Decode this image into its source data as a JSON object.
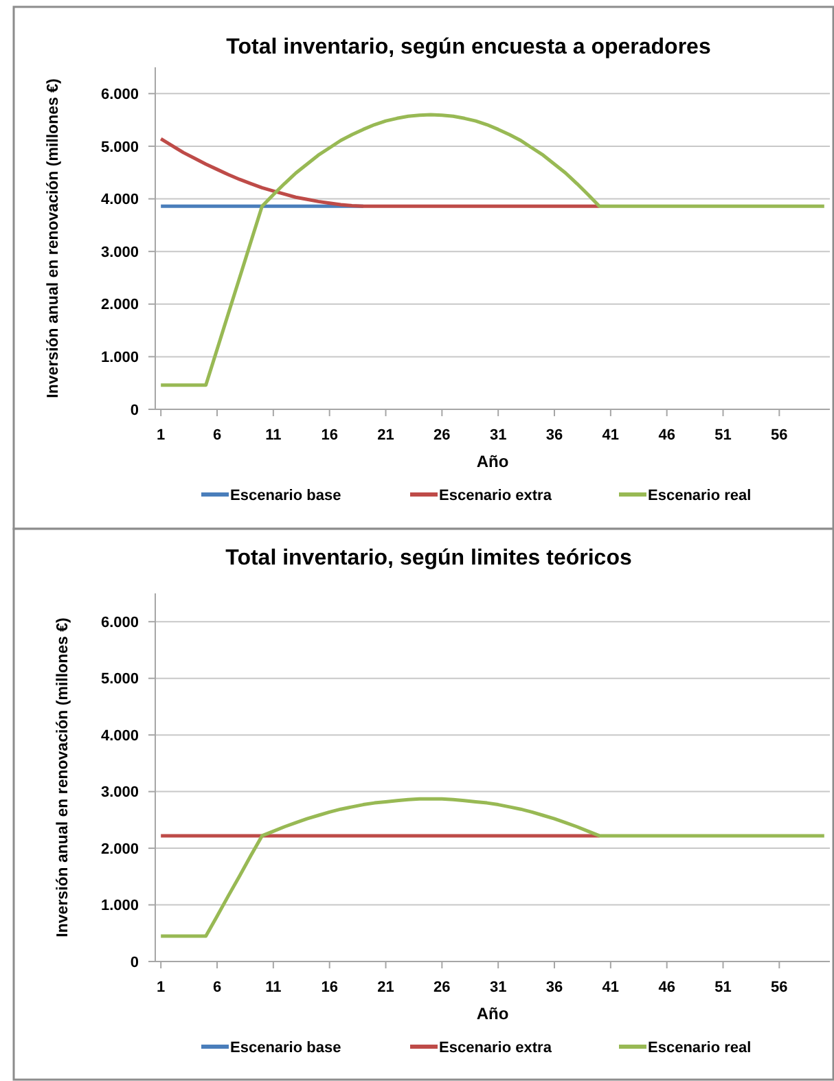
{
  "chart_data": [
    {
      "type": "line",
      "title": "Total inventario, según encuesta a operadores",
      "xlabel": "Año",
      "ylabel": "Inversión anual en renovación (millones €)",
      "x": [
        1,
        2,
        3,
        4,
        5,
        6,
        7,
        8,
        9,
        10,
        11,
        12,
        13,
        14,
        15,
        16,
        17,
        18,
        19,
        20,
        21,
        22,
        23,
        24,
        25,
        26,
        27,
        28,
        29,
        30,
        31,
        32,
        33,
        34,
        35,
        36,
        37,
        38,
        39,
        40,
        41,
        42,
        43,
        44,
        45,
        46,
        47,
        48,
        49,
        50,
        51,
        52,
        53,
        54,
        55,
        56,
        57,
        58,
        59,
        60
      ],
      "series": [
        {
          "name": "Escenario base",
          "color": "#4a7ebb",
          "values": [
            3860,
            3860,
            3860,
            3860,
            3860,
            3860,
            3860,
            3860,
            3860,
            3860,
            3860,
            3860,
            3860,
            3860,
            3860,
            3860,
            3860,
            3860,
            3860,
            null,
            null,
            null,
            null,
            null,
            null,
            null,
            null,
            null,
            null,
            null,
            null,
            null,
            null,
            null,
            null,
            null,
            null,
            null,
            null,
            null,
            null,
            null,
            null,
            null,
            null,
            null,
            null,
            null,
            null,
            null,
            null,
            null,
            null,
            null,
            null,
            null,
            null,
            null,
            null,
            null
          ]
        },
        {
          "name": "Escenario extra",
          "color": "#be4b48",
          "values": [
            5140,
            5010,
            4880,
            4770,
            4660,
            4560,
            4460,
            4370,
            4290,
            4210,
            4150,
            4090,
            4030,
            3990,
            3950,
            3920,
            3890,
            3870,
            3860,
            3860,
            3860,
            3860,
            3860,
            3860,
            3860,
            3860,
            3860,
            3860,
            3860,
            3860,
            3860,
            3860,
            3860,
            3860,
            3860,
            3860,
            3860,
            3860,
            3860,
            3860,
            null,
            null,
            null,
            null,
            null,
            null,
            null,
            null,
            null,
            null,
            null,
            null,
            null,
            null,
            null,
            null,
            null,
            null,
            null,
            null
          ]
        },
        {
          "name": "Escenario real",
          "color": "#98b954",
          "values": [
            460,
            460,
            460,
            460,
            460,
            1140,
            1820,
            2500,
            3180,
            3860,
            4080,
            4290,
            4490,
            4660,
            4830,
            4970,
            5110,
            5220,
            5320,
            5410,
            5480,
            5530,
            5570,
            5590,
            5600,
            5590,
            5570,
            5530,
            5480,
            5410,
            5320,
            5220,
            5110,
            4970,
            4830,
            4660,
            4490,
            4290,
            4080,
            3860,
            3860,
            3860,
            3860,
            3860,
            3860,
            3860,
            3860,
            3860,
            3860,
            3860,
            3860,
            3860,
            3860,
            3860,
            3860,
            3860,
            3860,
            3860,
            3860,
            3860
          ]
        }
      ],
      "xlim": [
        0.5,
        60.5
      ],
      "xticks": [
        1,
        6,
        11,
        16,
        21,
        26,
        31,
        36,
        41,
        46,
        51,
        56
      ],
      "ylim": [
        0,
        6500
      ],
      "yticks": [
        0,
        {
          "value": 1000,
          "label": "1.000"
        },
        {
          "value": 2000,
          "label": "2.000"
        },
        {
          "value": 3000,
          "label": "3.000"
        },
        {
          "value": 4000,
          "label": "4.000"
        },
        {
          "value": 5000,
          "label": "5.000"
        },
        {
          "value": 6000,
          "label": "6.000"
        }
      ],
      "grid": "y",
      "legend": "bottom",
      "line_style": "solid"
    },
    {
      "type": "line",
      "title": "Total inventario, según limites teóricos",
      "xlabel": "Año",
      "ylabel": "Inversión anual en renovación (millones €)",
      "x": [
        1,
        2,
        3,
        4,
        5,
        6,
        7,
        8,
        9,
        10,
        11,
        12,
        13,
        14,
        15,
        16,
        17,
        18,
        19,
        20,
        21,
        22,
        23,
        24,
        25,
        26,
        27,
        28,
        29,
        30,
        31,
        32,
        33,
        34,
        35,
        36,
        37,
        38,
        39,
        40,
        41,
        42,
        43,
        44,
        45,
        46,
        47,
        48,
        49,
        50,
        51,
        52,
        53,
        54,
        55,
        56,
        57,
        58,
        59,
        60
      ],
      "series": [
        {
          "name": "Escenario base",
          "color": "#4a7ebb",
          "values": [
            null,
            null,
            null,
            null,
            null,
            null,
            null,
            null,
            null,
            null,
            null,
            null,
            null,
            null,
            null,
            null,
            null,
            null,
            null,
            null,
            null,
            null,
            null,
            null,
            null,
            null,
            null,
            null,
            null,
            null,
            null,
            null,
            null,
            null,
            null,
            null,
            null,
            null,
            null,
            null,
            null,
            null,
            null,
            null,
            null,
            null,
            null,
            null,
            null,
            null,
            null,
            null,
            null,
            null,
            null,
            null,
            null,
            null,
            null,
            null
          ]
        },
        {
          "name": "Escenario extra",
          "color": "#be4b48",
          "values": [
            2220,
            2220,
            2220,
            2220,
            2220,
            2220,
            2220,
            2220,
            2220,
            2220,
            2220,
            2220,
            2220,
            2220,
            2220,
            2220,
            2220,
            2220,
            2220,
            2220,
            2220,
            2220,
            2220,
            2220,
            2220,
            2220,
            2220,
            2220,
            2220,
            2220,
            2220,
            2220,
            2220,
            2220,
            2220,
            2220,
            2220,
            2220,
            2220,
            2220,
            null,
            null,
            null,
            null,
            null,
            null,
            null,
            null,
            null,
            null,
            null,
            null,
            null,
            null,
            null,
            null,
            null,
            null,
            null,
            null
          ]
        },
        {
          "name": "Escenario real",
          "color": "#98b954",
          "values": [
            450,
            450,
            450,
            450,
            450,
            800,
            1160,
            1510,
            1870,
            2220,
            2300,
            2380,
            2450,
            2520,
            2580,
            2640,
            2690,
            2730,
            2770,
            2800,
            2820,
            2840,
            2860,
            2870,
            2870,
            2870,
            2860,
            2840,
            2820,
            2800,
            2770,
            2730,
            2690,
            2640,
            2580,
            2520,
            2450,
            2380,
            2300,
            2220,
            2220,
            2220,
            2220,
            2220,
            2220,
            2220,
            2220,
            2220,
            2220,
            2220,
            2220,
            2220,
            2220,
            2220,
            2220,
            2220,
            2220,
            2220,
            2220,
            2220
          ]
        }
      ],
      "xlim": [
        0.5,
        60.5
      ],
      "xticks": [
        1,
        6,
        11,
        16,
        21,
        26,
        31,
        36,
        41,
        46,
        51,
        56
      ],
      "ylim": [
        0,
        6500
      ],
      "yticks": [
        0,
        {
          "value": 1000,
          "label": "1.000"
        },
        {
          "value": 2000,
          "label": "2.000"
        },
        {
          "value": 3000,
          "label": "3.000"
        },
        {
          "value": 4000,
          "label": "4.000"
        },
        {
          "value": 5000,
          "label": "5.000"
        },
        {
          "value": 6000,
          "label": "6.000"
        }
      ],
      "grid": "y",
      "legend": "bottom",
      "line_style": "solid"
    }
  ]
}
